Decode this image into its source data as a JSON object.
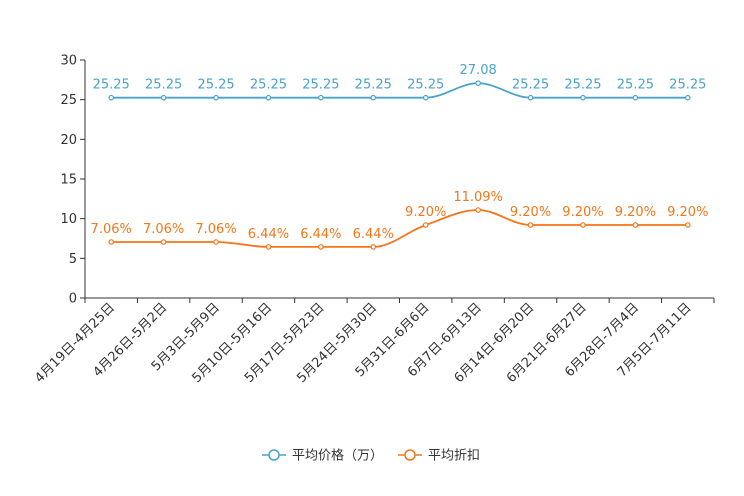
{
  "chart_data": {
    "type": "line",
    "title": "",
    "xlabel": "",
    "ylabel": "",
    "ylim": [
      0,
      30
    ],
    "yticks": [
      0,
      5,
      10,
      15,
      20,
      25,
      30
    ],
    "categories": [
      "4月19日-4月25日",
      "4月26日-5月2日",
      "5月3日-5月9日",
      "5月10日-5月16日",
      "5月17日-5月23日",
      "5月24日-5月30日",
      "5月31日-6月6日",
      "6月7日-6月13日",
      "6月14日-6月20日",
      "6月21日-6月27日",
      "6月28日-7月4日",
      "7月5日-7月11日"
    ],
    "series": [
      {
        "name": "平均价格（万）",
        "color": "#4aa3cc",
        "values": [
          25.25,
          25.25,
          25.25,
          25.25,
          25.25,
          25.25,
          25.25,
          27.08,
          25.25,
          25.25,
          25.25,
          25.25
        ],
        "labels": [
          "25.25",
          "25.25",
          "25.25",
          "25.25",
          "25.25",
          "25.25",
          "25.25",
          "27.08",
          "25.25",
          "25.25",
          "25.25",
          "25.25"
        ]
      },
      {
        "name": "平均折扣",
        "color": "#f5761a",
        "values": [
          7.06,
          7.06,
          7.06,
          6.44,
          6.44,
          6.44,
          9.2,
          11.09,
          9.2,
          9.2,
          9.2,
          9.2
        ],
        "labels": [
          "7.06%",
          "7.06%",
          "7.06%",
          "6.44%",
          "6.44%",
          "6.44%",
          "9.20%",
          "11.09%",
          "9.20%",
          "9.20%",
          "9.20%",
          "9.20%"
        ]
      }
    ],
    "legend_position": "bottom-center",
    "grid": false
  }
}
